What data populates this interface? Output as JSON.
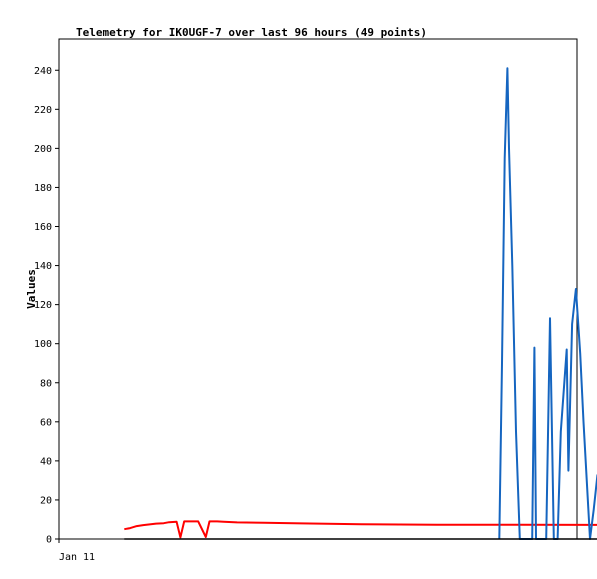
{
  "chart_data": {
    "type": "line",
    "title": "Telemetry for IK0UGF-7 over last 96 hours (49 points)",
    "xlabel": "",
    "ylabel": "Values",
    "x_tick_labels": [
      "Jan 11"
    ],
    "y_ticks": [
      0,
      20,
      40,
      60,
      80,
      100,
      120,
      140,
      160,
      180,
      200,
      220,
      240
    ],
    "xlim": [
      0,
      96
    ],
    "ylim": [
      0,
      256
    ],
    "grid": false,
    "legend": "none",
    "series": [
      {
        "color": "#ff0000",
        "points": [
          [
            12.1,
            5
          ],
          [
            13.2,
            5.6
          ],
          [
            14.4,
            6.6
          ],
          [
            15.6,
            7.1
          ],
          [
            16.6,
            7.4
          ],
          [
            18.0,
            7.9
          ],
          [
            19.4,
            8.1
          ],
          [
            20.4,
            8.6
          ],
          [
            21.8,
            8.8
          ],
          [
            22.5,
            0.8
          ],
          [
            23.2,
            9.0
          ],
          [
            24.4,
            9.0
          ],
          [
            25.8,
            9.0
          ],
          [
            27.2,
            1.0
          ],
          [
            27.9,
            9.0
          ],
          [
            29.3,
            9.0
          ],
          [
            30.5,
            8.8
          ],
          [
            33.0,
            8.5
          ],
          [
            38.0,
            8.3
          ],
          [
            45.0,
            8.0
          ],
          [
            56.0,
            7.6
          ],
          [
            70.0,
            7.3
          ],
          [
            85.0,
            7.3
          ],
          [
            100.2,
            7.2
          ]
        ]
      },
      {
        "color": "#1565c0",
        "points": [
          [
            81.6,
            0
          ],
          [
            82.1,
            90
          ],
          [
            82.6,
            195
          ],
          [
            83.1,
            241
          ],
          [
            83.4,
            200
          ],
          [
            84.0,
            140
          ],
          [
            84.7,
            55
          ],
          [
            85.4,
            0
          ],
          [
            87.7,
            0
          ],
          [
            88.1,
            98
          ],
          [
            88.4,
            0
          ],
          [
            88.9,
            0
          ],
          [
            90.3,
            0
          ],
          [
            91.0,
            113
          ],
          [
            91.7,
            0
          ],
          [
            92.4,
            0
          ],
          [
            93.0,
            55
          ],
          [
            94.1,
            97
          ],
          [
            94.4,
            35
          ],
          [
            95.1,
            110
          ],
          [
            95.8,
            128
          ],
          [
            96.6,
            95
          ],
          [
            97.2,
            60
          ],
          [
            98.4,
            0
          ],
          [
            99.1,
            15
          ],
          [
            99.8,
            33
          ]
        ]
      },
      {
        "color": "#000000",
        "points": [
          [
            12.1,
            0
          ],
          [
            100.2,
            0
          ]
        ]
      }
    ]
  }
}
